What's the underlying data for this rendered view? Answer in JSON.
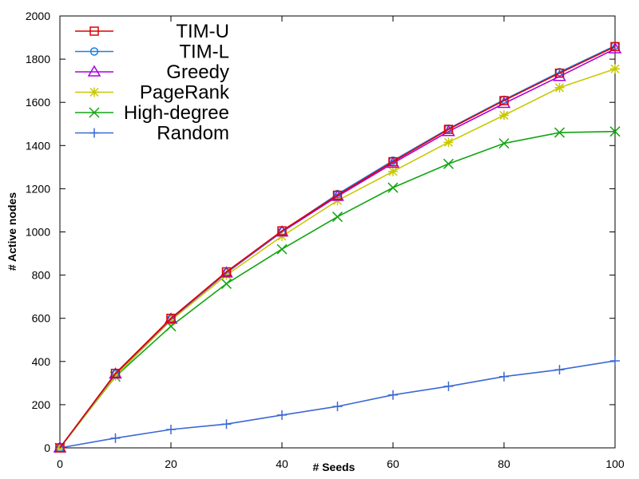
{
  "chart_data": {
    "type": "line",
    "xlabel": "# Seeds",
    "ylabel": "# Active nodes",
    "xlim": [
      0,
      100
    ],
    "ylim": [
      0,
      2000
    ],
    "xticks": [
      0,
      20,
      40,
      60,
      80,
      100
    ],
    "yticks": [
      0,
      200,
      400,
      600,
      800,
      1000,
      1200,
      1400,
      1600,
      1800,
      2000
    ],
    "legend_position": "top-left",
    "grid": false,
    "x": [
      0,
      10,
      20,
      30,
      40,
      50,
      60,
      70,
      80,
      90,
      100
    ],
    "series": [
      {
        "name": "TIM-U",
        "color": "#dd0000",
        "marker": "square",
        "values": [
          0,
          345,
          600,
          815,
          1005,
          1170,
          1325,
          1475,
          1608,
          1735,
          1858
        ]
      },
      {
        "name": "TIM-L",
        "color": "#1e7fe0",
        "marker": "circle",
        "values": [
          0,
          343,
          598,
          812,
          1003,
          1175,
          1330,
          1478,
          1612,
          1740,
          1862
        ]
      },
      {
        "name": "Greedy",
        "color": "#aa00dd",
        "marker": "triangle",
        "values": [
          0,
          342,
          596,
          810,
          1000,
          1165,
          1318,
          1465,
          1595,
          1720,
          1848
        ]
      },
      {
        "name": "PageRank",
        "color": "#c8c800",
        "marker": "star",
        "values": [
          0,
          333,
          590,
          800,
          980,
          1145,
          1280,
          1415,
          1540,
          1668,
          1755
        ]
      },
      {
        "name": "High-degree",
        "color": "#10a510",
        "marker": "x",
        "values": [
          0,
          330,
          563,
          760,
          920,
          1070,
          1205,
          1315,
          1410,
          1460,
          1465
        ]
      },
      {
        "name": "Random",
        "color": "#3b68d4",
        "marker": "plus",
        "values": [
          0,
          45,
          85,
          110,
          152,
          192,
          245,
          285,
          330,
          362,
          403
        ]
      }
    ]
  }
}
